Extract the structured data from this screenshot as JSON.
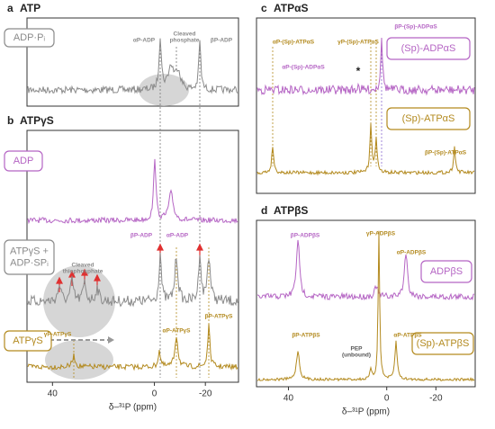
{
  "panels": [
    {
      "label": "a",
      "title": "ATP",
      "legends": [
        "ADP·Pᵢ"
      ],
      "annotations": [
        "αP-ADP",
        [
          "Cleaved",
          "phosphate"
        ],
        "βP-ADP"
      ]
    },
    {
      "label": "b",
      "title": "ATPγS",
      "legends": [
        "ADP",
        [
          "ATPγS +",
          "ADP·SPᵢ"
        ],
        "ATPγS"
      ],
      "annotations": [
        "βP-ADP",
        "αP-ADP",
        [
          "Cleaved",
          "thiophosphate"
        ],
        "γP-ATPγS",
        "αP-ATPγS",
        "βP-ATPγS"
      ],
      "xlim": [
        50,
        -33
      ],
      "xticks": [
        40,
        0,
        -20
      ],
      "xlabel": "δ–³¹P (ppm)"
    },
    {
      "label": "c",
      "title": "ATPαS",
      "legends": [
        "(Sp)-ADPαS",
        "(Sp)-ATPαS"
      ],
      "annotations": [
        "αP-(Sp)-ATPαS",
        "αP-(Sp)-ADPαS",
        "γP-(Sp)-ATPαS",
        "βP-(Sp)-ADPαS",
        "*",
        "βP-(Sp)-ATPαS"
      ]
    },
    {
      "label": "d",
      "title": "ATPβS",
      "legends": [
        "ADPβS",
        "(Sp)-ATPβS"
      ],
      "annotations": [
        "βP-ADPβS",
        "γP-ADPβS",
        "αP-ADPβS",
        "βP-ATPβS",
        [
          "PEP",
          "(unbound)"
        ],
        "αP-ATPβS"
      ],
      "xlim": [
        53,
        -36
      ],
      "xticks": [
        40,
        0,
        -20
      ],
      "xlabel": "δ–³¹P (ppm)"
    }
  ]
}
